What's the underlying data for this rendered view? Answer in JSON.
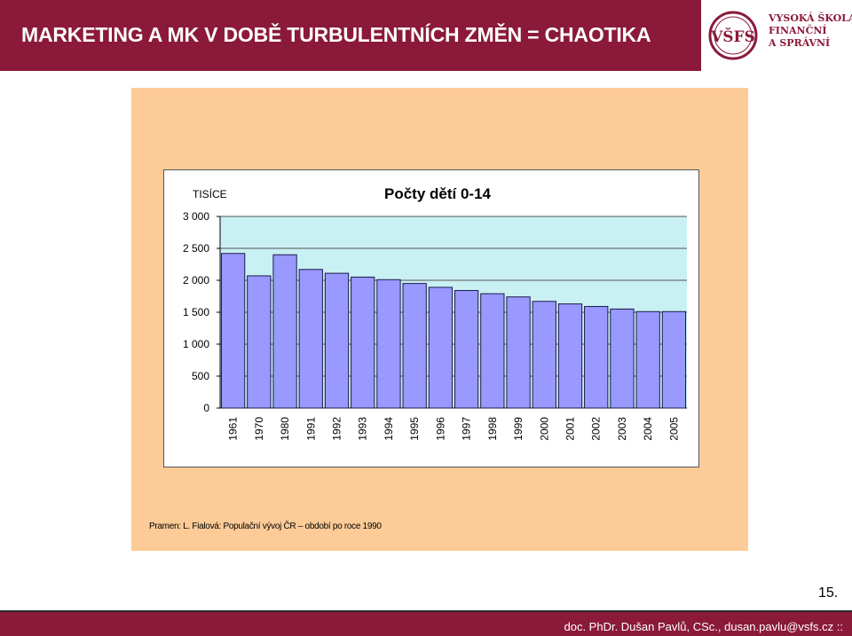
{
  "header": {
    "title": "MARKETING A MK V DOBĚ TURBULENTNÍCH ZMĚN = CHAOTIKA",
    "logo_mark": "VŠFS",
    "logo_line1": "VYSOKÁ ŠKOLA",
    "logo_line2": "FINANČNÍ",
    "logo_line3": "A SPRÁVNÍ"
  },
  "chart_data": {
    "type": "bar",
    "title": "Počty dětí 0-14",
    "unit_label": "TISÍCE",
    "categories": [
      "1961",
      "1970",
      "1980",
      "1991",
      "1992",
      "1993",
      "1994",
      "1995",
      "1996",
      "1997",
      "1998",
      "1999",
      "2000",
      "2001",
      "2002",
      "2003",
      "2004",
      "2005"
    ],
    "values": [
      2420,
      2070,
      2400,
      2170,
      2110,
      2050,
      2010,
      1950,
      1890,
      1840,
      1790,
      1740,
      1670,
      1630,
      1590,
      1550,
      1510,
      1510
    ],
    "ylim": [
      0,
      3000
    ],
    "yticks": [
      0,
      500,
      1000,
      1500,
      2000,
      2500,
      3000
    ],
    "ytick_labels": [
      "0",
      "500",
      "1 000",
      "1 500",
      "2 000",
      "2 500",
      "3 000"
    ],
    "grid": true,
    "colors": {
      "bar": "#9999ff",
      "bar_edge": "#1a1a4a",
      "plot_bg": "#c9f0f3",
      "gridline": "#555555"
    }
  },
  "source": "Pramen: L. Fialová: Populační vývoj ČR – období po roce 1990",
  "page_number": "15.",
  "footer": "doc. PhDr. Dušan Pavlů, CSc., dusan.pavlu@vsfs.cz  ::"
}
